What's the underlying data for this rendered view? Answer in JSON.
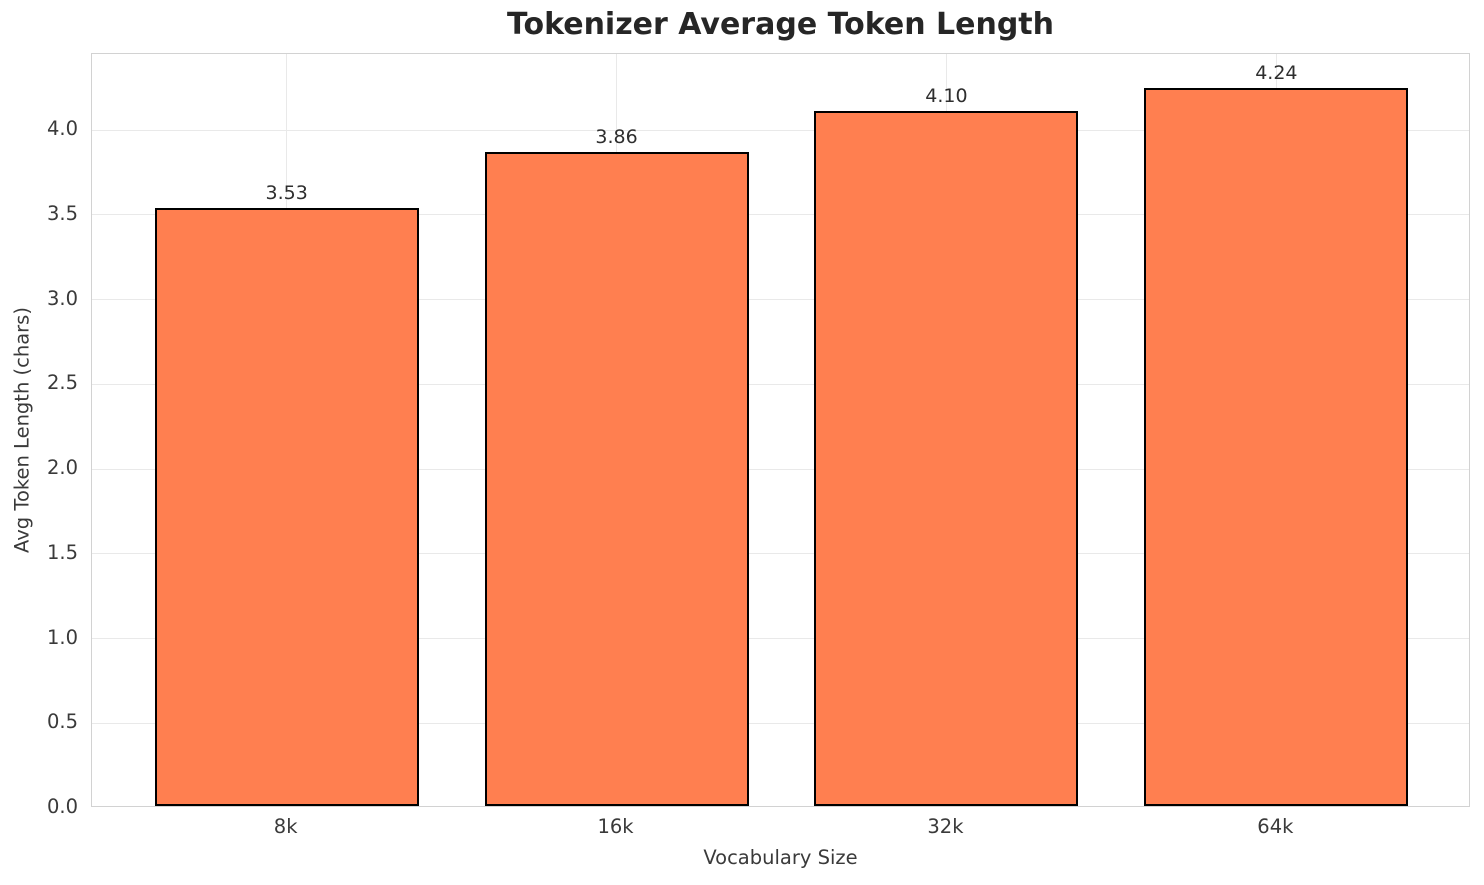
{
  "chart_data": {
    "type": "bar",
    "title": "Tokenizer Average Token Length",
    "xlabel": "Vocabulary Size",
    "ylabel": "Avg Token Length (chars)",
    "categories": [
      "8k",
      "16k",
      "32k",
      "64k"
    ],
    "values": [
      3.53,
      3.86,
      4.1,
      4.24
    ],
    "value_labels": [
      "3.53",
      "3.86",
      "4.10",
      "4.24"
    ],
    "ytick_labels": [
      "0.0",
      "0.5",
      "1.0",
      "1.5",
      "2.0",
      "2.5",
      "3.0",
      "3.5",
      "4.0"
    ],
    "ytick_values": [
      0.0,
      0.5,
      1.0,
      1.5,
      2.0,
      2.5,
      3.0,
      3.5,
      4.0
    ],
    "ylim": [
      0,
      4.45
    ],
    "grid": true,
    "legend": null,
    "colors": {
      "bar_fill": "#FF7F50",
      "bar_edge": "#000000",
      "grid": "#e9e9e9",
      "axes_border": "#d2d2d2",
      "title_text": "#262626",
      "tick_text": "#3a3a3a",
      "background": "#ffffff"
    }
  }
}
